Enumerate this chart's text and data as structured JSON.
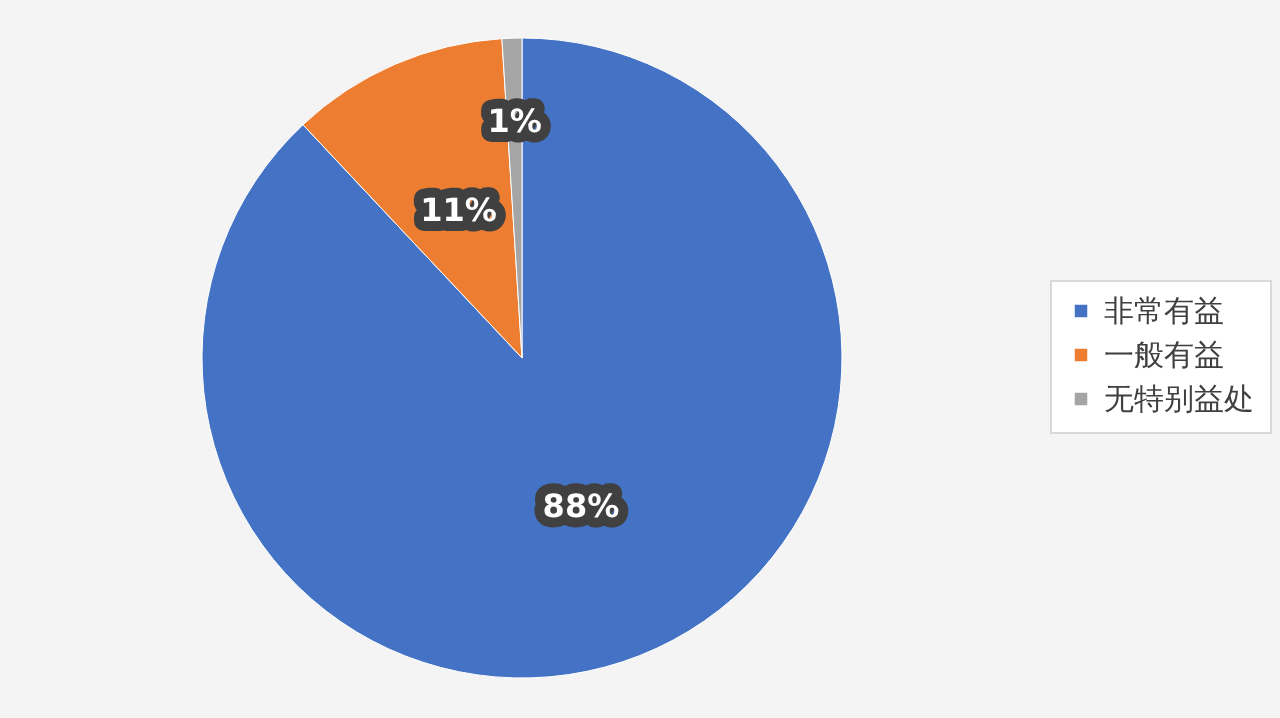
{
  "chart_data": {
    "type": "pie",
    "categories": [
      "非常有益",
      "一般有益",
      "无特别益处"
    ],
    "values": [
      88,
      11,
      1
    ],
    "colors": [
      "#4472c4",
      "#ed7d31",
      "#a5a5a5"
    ],
    "value_labels": [
      "88%",
      "11%",
      "1%"
    ],
    "legend": "right"
  }
}
